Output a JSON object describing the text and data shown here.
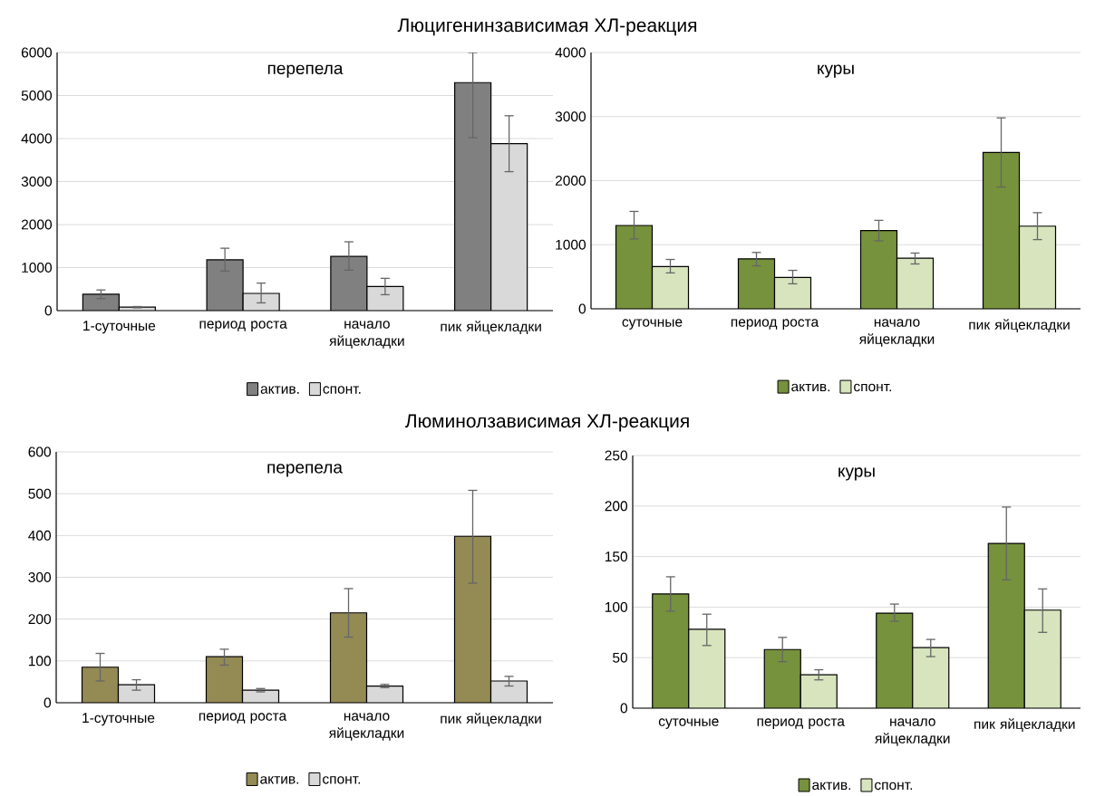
{
  "chart_data": [
    {
      "type": "bar",
      "title": "Люцигенинзависимая ХЛ-реакция",
      "subtitle": "перепела",
      "categories": [
        "1-суточные",
        "период роста",
        "начало яйцекладки",
        "пик яйцекладки"
      ],
      "series": [
        {
          "name": "актив.",
          "color": "#808080",
          "values": [
            380,
            1180,
            1260,
            5300
          ],
          "errors": [
            [
              280,
              480
            ],
            [
              920,
              1450
            ],
            [
              940,
              1600
            ],
            [
              4020,
              6000
            ]
          ]
        },
        {
          "name": "спонт.",
          "color": "#d9d9d9",
          "values": [
            80,
            400,
            560,
            3880
          ],
          "errors": [
            [
              65,
              95
            ],
            [
              180,
              640
            ],
            [
              370,
              750
            ],
            [
              3230,
              4530
            ]
          ]
        }
      ],
      "ylim": [
        0,
        6000
      ],
      "yticks": [
        0,
        1000,
        2000,
        3000,
        4000,
        5000,
        6000
      ],
      "grid": "y",
      "legend": "bottom"
    },
    {
      "type": "bar",
      "subtitle": "куры",
      "categories": [
        "суточные",
        "период роста",
        "начало яйцекладки",
        "пик яйцекладки"
      ],
      "series": [
        {
          "name": "актив.",
          "color": "#76923c",
          "values": [
            1300,
            780,
            1220,
            2440
          ],
          "errors": [
            [
              1090,
              1520
            ],
            [
              670,
              880
            ],
            [
              1060,
              1380
            ],
            [
              1900,
              2980
            ]
          ]
        },
        {
          "name": "спонт.",
          "color": "#d7e4bd",
          "values": [
            660,
            490,
            790,
            1290
          ],
          "errors": [
            [
              560,
              770
            ],
            [
              390,
              600
            ],
            [
              700,
              870
            ],
            [
              1080,
              1500
            ]
          ]
        }
      ],
      "ylim": [
        0,
        4000
      ],
      "yticks": [
        0,
        1000,
        2000,
        3000,
        4000
      ],
      "grid": "y",
      "legend": "bottom"
    },
    {
      "type": "bar",
      "title": "Люминолзависимая ХЛ-реакция",
      "subtitle": "перепела",
      "categories": [
        "1-суточные",
        "период роста",
        "начало яйцекладки",
        "пик яйцекладки"
      ],
      "series": [
        {
          "name": "актив.",
          "color": "#948a54",
          "values": [
            85,
            110,
            215,
            398
          ],
          "errors": [
            [
              52,
              118
            ],
            [
              90,
              128
            ],
            [
              157,
              273
            ],
            [
              286,
              508
            ]
          ]
        },
        {
          "name": "спонт.",
          "color": "#d9d9d9",
          "values": [
            43,
            30,
            40,
            52
          ],
          "errors": [
            [
              30,
              55
            ],
            [
              26,
              34
            ],
            [
              36,
              44
            ],
            [
              40,
              63
            ]
          ]
        }
      ],
      "ylim": [
        0,
        600
      ],
      "yticks": [
        0,
        100,
        200,
        300,
        400,
        500,
        600
      ],
      "grid": "y",
      "legend": "bottom"
    },
    {
      "type": "bar",
      "subtitle": "куры",
      "categories": [
        "суточные",
        "период роста",
        "начало яйцекладки",
        "пик яйцекладки"
      ],
      "series": [
        {
          "name": "актив.",
          "color": "#76923c",
          "values": [
            113,
            58,
            94,
            163
          ],
          "errors": [
            [
              96,
              130
            ],
            [
              46,
              70
            ],
            [
              86,
              103
            ],
            [
              127,
              199
            ]
          ]
        },
        {
          "name": "спонт.",
          "color": "#d7e4bd",
          "values": [
            78,
            33,
            60,
            97
          ],
          "errors": [
            [
              62,
              93
            ],
            [
              28,
              38
            ],
            [
              51,
              68
            ],
            [
              75,
              118
            ]
          ]
        }
      ],
      "ylim": [
        0,
        250
      ],
      "yticks": [
        0,
        50,
        100,
        150,
        200,
        250
      ],
      "grid": "y",
      "legend": "bottom"
    }
  ]
}
